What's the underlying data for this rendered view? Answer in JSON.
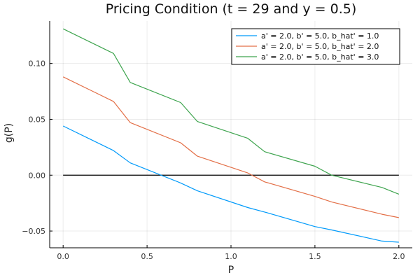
{
  "chart_data": {
    "type": "line",
    "title": "Pricing Condition (t = 29 and y = 0.5)",
    "xlabel": "P",
    "ylabel": "g(P)",
    "xlim": [
      -0.08,
      2.08
    ],
    "ylim": [
      -0.065,
      0.138
    ],
    "xticks": [
      0.0,
      0.5,
      1.0,
      1.5,
      2.0
    ],
    "xtick_labels": [
      "0.0",
      "0.5",
      "1.0",
      "1.5",
      "2.0"
    ],
    "yticks": [
      -0.05,
      0.0,
      0.05,
      0.1
    ],
    "ytick_labels": [
      "−0.05",
      "0.00",
      "0.05",
      "0.10"
    ],
    "grid": true,
    "legend_position": "top-right",
    "reference_line": {
      "y": 0,
      "color": "#000000"
    },
    "series": [
      {
        "name": "a' = 2.0, b' = 5.0, b_hat' = 1.0",
        "color": "#009AFA",
        "x": [
          0.0,
          0.3,
          0.4,
          0.7,
          0.8,
          1.1,
          1.2,
          1.5,
          1.6,
          1.9,
          2.0
        ],
        "y": [
          0.044,
          0.022,
          0.011,
          -0.007,
          -0.014,
          -0.029,
          -0.033,
          -0.046,
          -0.049,
          -0.059,
          -0.06
        ]
      },
      {
        "name": "a' = 2.0, b' = 5.0, b_hat' = 2.0",
        "color": "#E36F47",
        "x": [
          0.0,
          0.3,
          0.4,
          0.7,
          0.8,
          1.1,
          1.2,
          1.5,
          1.6,
          1.9,
          2.0
        ],
        "y": [
          0.088,
          0.066,
          0.047,
          0.029,
          0.017,
          0.002,
          -0.006,
          -0.019,
          -0.024,
          -0.035,
          -0.038
        ]
      },
      {
        "name": "a' = 2.0, b' = 5.0, b_hat' = 3.0",
        "color": "#3EA44E",
        "x": [
          0.0,
          0.3,
          0.4,
          0.7,
          0.8,
          1.1,
          1.2,
          1.5,
          1.6,
          1.9,
          2.0
        ],
        "y": [
          0.131,
          0.109,
          0.083,
          0.065,
          0.048,
          0.033,
          0.021,
          0.008,
          0.0,
          -0.011,
          -0.017
        ]
      }
    ]
  }
}
